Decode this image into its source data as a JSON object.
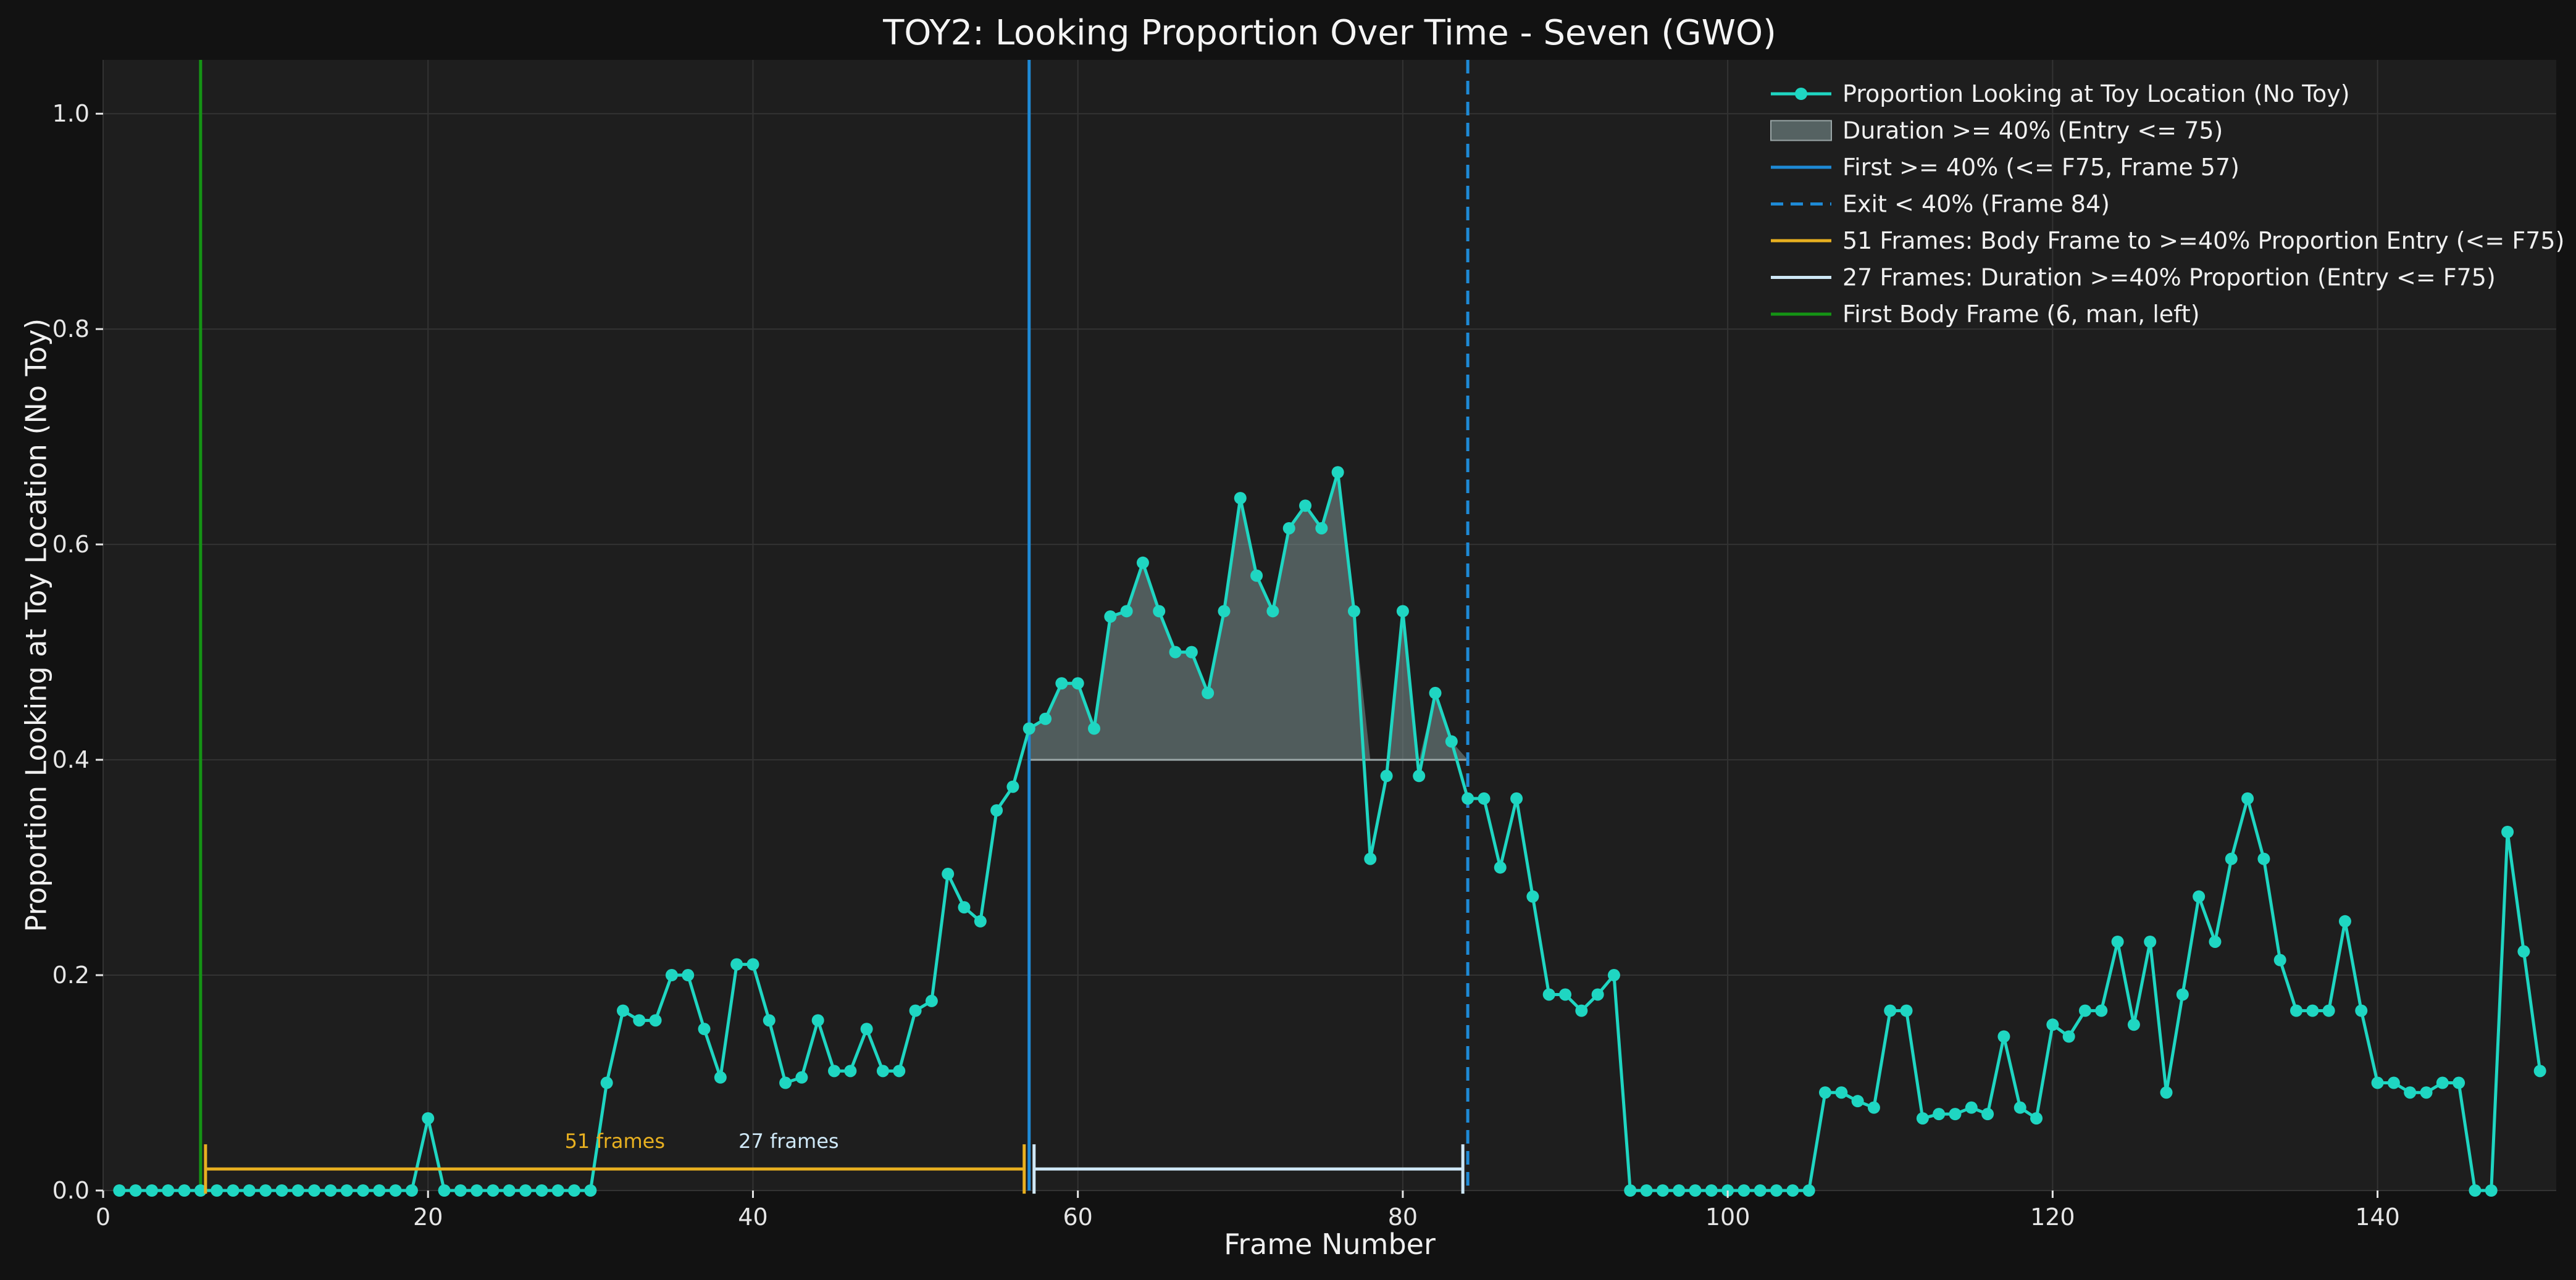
{
  "chart_data": {
    "type": "line",
    "title": "TOY2: Looking Proportion Over Time - Seven (GWO)",
    "xlabel": "Frame Number",
    "ylabel": "Proportion Looking at Toy Location (No Toy)",
    "xlim": [
      0,
      151
    ],
    "ylim": [
      0,
      1.05
    ],
    "xticks": [
      0,
      20,
      40,
      60,
      80,
      100,
      120,
      140
    ],
    "yticks": [
      0.0,
      0.2,
      0.4,
      0.6,
      0.8,
      1.0
    ],
    "ytick_labels": [
      "0.0",
      "0.2",
      "0.4",
      "0.6",
      "0.8",
      "1.0"
    ],
    "grid": true,
    "legend_position": "top-right",
    "threshold": 0.4,
    "colors": {
      "background": "#121212",
      "plot_bg": "#1e1e1e",
      "series": "#1fd6c2",
      "fill": "#7a8f90",
      "first_line": "#1e8ad6",
      "exit_line": "#1e8ad6",
      "orange": "#e8b020",
      "light": "#cfe8f7",
      "green": "#149414",
      "grid": "#333333"
    },
    "series": [
      {
        "name": "Proportion Looking at Toy Location (No Toy)",
        "x": [
          1,
          2,
          3,
          4,
          5,
          6,
          7,
          8,
          9,
          10,
          11,
          12,
          13,
          14,
          15,
          16,
          17,
          18,
          19,
          20,
          21,
          22,
          23,
          24,
          25,
          26,
          27,
          28,
          29,
          30,
          31,
          32,
          33,
          34,
          35,
          36,
          37,
          38,
          39,
          40,
          41,
          42,
          43,
          44,
          45,
          46,
          47,
          48,
          49,
          50,
          51,
          52,
          53,
          54,
          55,
          56,
          57,
          58,
          59,
          60,
          61,
          62,
          63,
          64,
          65,
          66,
          67,
          68,
          69,
          70,
          71,
          72,
          73,
          74,
          75,
          76,
          77,
          78,
          79,
          80,
          81,
          82,
          83,
          84,
          85,
          86,
          87,
          88,
          89,
          90,
          91,
          92,
          93,
          94,
          95,
          96,
          97,
          98,
          99,
          100,
          101,
          102,
          103,
          104,
          105,
          106,
          107,
          108,
          109,
          110,
          111,
          112,
          113,
          114,
          115,
          116,
          117,
          118,
          119,
          120,
          121,
          122,
          123,
          124,
          125,
          126,
          127,
          128,
          129,
          130,
          131,
          132,
          133,
          134,
          135,
          136,
          137,
          138,
          139,
          140,
          141,
          142,
          143,
          144,
          145,
          146,
          147,
          148,
          149,
          150
        ],
        "values": [
          0,
          0,
          0,
          0,
          0,
          0,
          0,
          0,
          0,
          0,
          0,
          0,
          0,
          0,
          0,
          0,
          0,
          0,
          0,
          0.067,
          0,
          0,
          0,
          0,
          0,
          0,
          0,
          0,
          0,
          0,
          0.1,
          0.167,
          0.158,
          0.158,
          0.2,
          0.2,
          0.15,
          0.105,
          0.21,
          0.21,
          0.158,
          0.1,
          0.105,
          0.158,
          0.111,
          0.111,
          0.15,
          0.111,
          0.111,
          0.167,
          0.176,
          0.294,
          0.263,
          0.25,
          0.353,
          0.375,
          0.429,
          0.438,
          0.471,
          0.471,
          0.429,
          0.533,
          0.538,
          0.583,
          0.538,
          0.5,
          0.5,
          0.462,
          0.538,
          0.643,
          0.571,
          0.538,
          0.615,
          0.636,
          0.615,
          0.667,
          0.538,
          0.308,
          0.385,
          0.538,
          0.385,
          0.462,
          0.417,
          0.364,
          0.364,
          0.3,
          0.364,
          0.273,
          0.182,
          0.182,
          0.167,
          0.182,
          0.2,
          0,
          0,
          0,
          0,
          0,
          0,
          0,
          0,
          0,
          0,
          0,
          0,
          0.091,
          0.091,
          0.083,
          0.077,
          0.167,
          0.167,
          0.067,
          0.071,
          0.071,
          0.077,
          0.071,
          0.143,
          0.077,
          0.067,
          0.154,
          0.143,
          0.167,
          0.167,
          0.231,
          0.154,
          0.231,
          0.091,
          0.182,
          0.273,
          0.231,
          0.308,
          0.364,
          0.308,
          0.214,
          0.167,
          0.167,
          0.167,
          0.25,
          0.167,
          0.1,
          0.1,
          0.091,
          0.091,
          0.1,
          0.1,
          0,
          0,
          0.333,
          0.222,
          0.111
        ]
      }
    ],
    "fill_region": {
      "label": "Duration >= 40% (Entry <= 75)",
      "x_start": 57,
      "x_end": 84
    },
    "vlines": [
      {
        "label": "First >= 40% (<= F75, Frame 57)",
        "x": 57,
        "style": "solid",
        "color_key": "first_line"
      },
      {
        "label": "Exit < 40% (Frame 84)",
        "x": 84,
        "style": "dashed",
        "color_key": "exit_line"
      },
      {
        "label": "First Body Frame (6, man, left)",
        "x": 6,
        "style": "solid",
        "color_key": "green"
      }
    ],
    "brackets": [
      {
        "label": "51 Frames: Body Frame to >=40% Proportion Entry (<= F75)",
        "annotation": "51 frames",
        "x_start": 6,
        "x_end": 57,
        "y": 0.02,
        "color_key": "orange"
      },
      {
        "label": "27 Frames: Duration >=40% Proportion (Entry <= F75)",
        "annotation": "27 frames",
        "x_start": 57,
        "x_end": 84,
        "y": 0.02,
        "color_key": "light"
      }
    ],
    "legend": [
      {
        "kind": "line-marker",
        "color_key": "series",
        "label": "Proportion Looking at Toy Location (No Toy)"
      },
      {
        "kind": "patch",
        "color_key": "fill",
        "label": "Duration >= 40% (Entry <= 75)"
      },
      {
        "kind": "line",
        "color_key": "first_line",
        "label": "First >= 40% (<= F75, Frame 57)"
      },
      {
        "kind": "dashed",
        "color_key": "exit_line",
        "label": "Exit < 40% (Frame 84)"
      },
      {
        "kind": "line",
        "color_key": "orange",
        "label": "51 Frames: Body Frame to >=40% Proportion Entry (<= F75)"
      },
      {
        "kind": "line",
        "color_key": "light",
        "label": "27 Frames: Duration >=40% Proportion (Entry <= F75)"
      },
      {
        "kind": "line",
        "color_key": "green",
        "label": "First Body Frame (6, man, left)"
      }
    ]
  }
}
